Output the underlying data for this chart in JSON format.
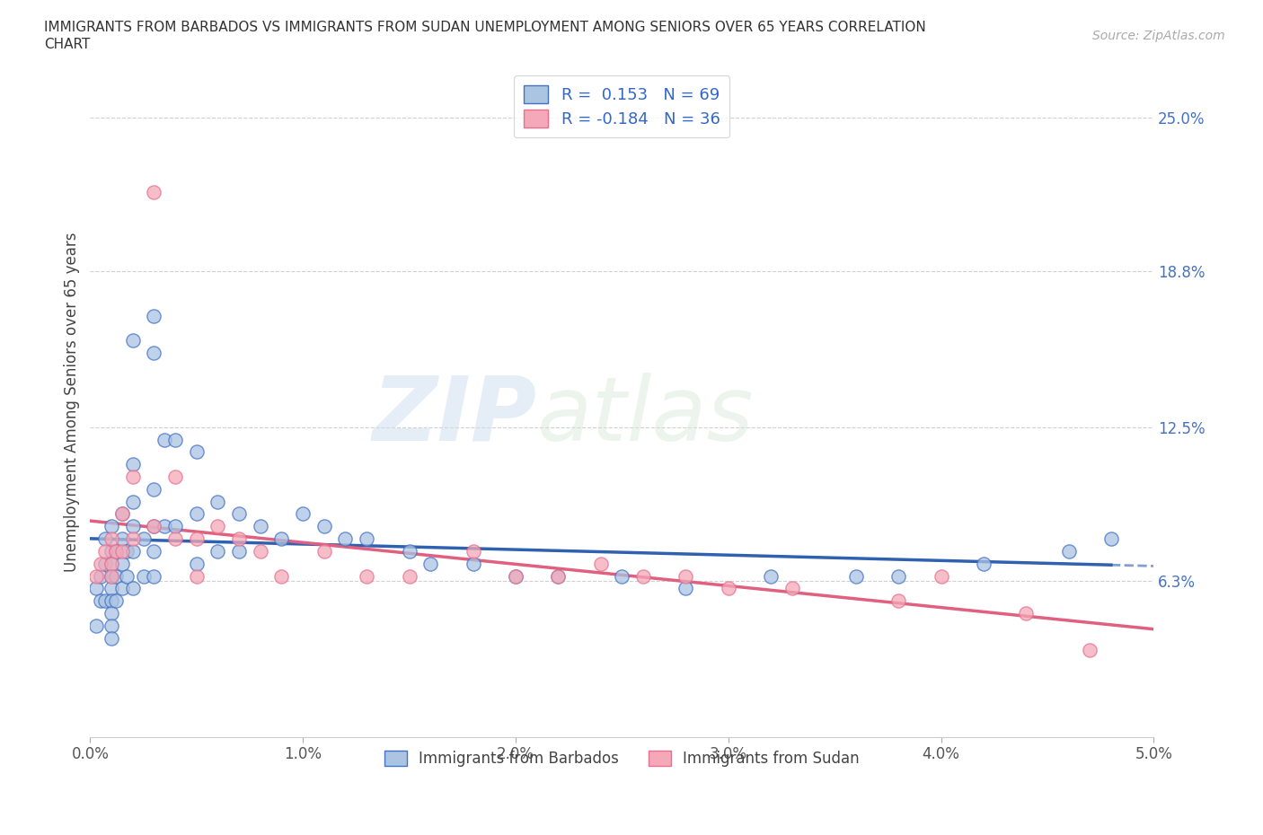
{
  "title_line1": "IMMIGRANTS FROM BARBADOS VS IMMIGRANTS FROM SUDAN UNEMPLOYMENT AMONG SENIORS OVER 65 YEARS CORRELATION",
  "title_line2": "CHART",
  "source": "Source: ZipAtlas.com",
  "ylabel": "Unemployment Among Seniors over 65 years",
  "xlim": [
    0.0,
    0.05
  ],
  "ylim": [
    0.0,
    0.27
  ],
  "xtick_labels": [
    "0.0%",
    "1.0%",
    "2.0%",
    "3.0%",
    "4.0%",
    "5.0%"
  ],
  "xtick_values": [
    0.0,
    0.01,
    0.02,
    0.03,
    0.04,
    0.05
  ],
  "right_ytick_labels": [
    "25.0%",
    "18.8%",
    "12.5%",
    "6.3%"
  ],
  "right_ytick_values": [
    0.25,
    0.188,
    0.125,
    0.063
  ],
  "watermark_zip": "ZIP",
  "watermark_atlas": "atlas",
  "barbados_color": "#aac4e2",
  "sudan_color": "#f4a8b8",
  "barbados_edge_color": "#4472c4",
  "sudan_edge_color": "#e87090",
  "barbados_line_color": "#3060b0",
  "sudan_line_color": "#e06080",
  "R_barbados": 0.153,
  "N_barbados": 69,
  "R_sudan": -0.184,
  "N_sudan": 36,
  "barbados_scatter_x": [
    0.0003,
    0.0003,
    0.0005,
    0.0005,
    0.0007,
    0.0007,
    0.0007,
    0.001,
    0.001,
    0.001,
    0.001,
    0.001,
    0.001,
    0.001,
    0.001,
    0.001,
    0.0012,
    0.0012,
    0.0012,
    0.0015,
    0.0015,
    0.0015,
    0.0015,
    0.0017,
    0.0017,
    0.002,
    0.002,
    0.002,
    0.002,
    0.002,
    0.002,
    0.0025,
    0.0025,
    0.003,
    0.003,
    0.003,
    0.003,
    0.003,
    0.003,
    0.0035,
    0.0035,
    0.004,
    0.004,
    0.005,
    0.005,
    0.005,
    0.006,
    0.006,
    0.007,
    0.007,
    0.008,
    0.009,
    0.01,
    0.011,
    0.012,
    0.013,
    0.015,
    0.016,
    0.018,
    0.02,
    0.022,
    0.025,
    0.028,
    0.032,
    0.036,
    0.038,
    0.042,
    0.046,
    0.048
  ],
  "barbados_scatter_y": [
    0.06,
    0.045,
    0.065,
    0.055,
    0.08,
    0.07,
    0.055,
    0.085,
    0.075,
    0.07,
    0.065,
    0.06,
    0.055,
    0.05,
    0.045,
    0.04,
    0.075,
    0.065,
    0.055,
    0.09,
    0.08,
    0.07,
    0.06,
    0.075,
    0.065,
    0.16,
    0.11,
    0.095,
    0.085,
    0.075,
    0.06,
    0.08,
    0.065,
    0.17,
    0.155,
    0.1,
    0.085,
    0.075,
    0.065,
    0.12,
    0.085,
    0.12,
    0.085,
    0.115,
    0.09,
    0.07,
    0.095,
    0.075,
    0.09,
    0.075,
    0.085,
    0.08,
    0.09,
    0.085,
    0.08,
    0.08,
    0.075,
    0.07,
    0.07,
    0.065,
    0.065,
    0.065,
    0.06,
    0.065,
    0.065,
    0.065,
    0.07,
    0.075,
    0.08
  ],
  "sudan_scatter_x": [
    0.0003,
    0.0005,
    0.0007,
    0.001,
    0.001,
    0.001,
    0.0012,
    0.0015,
    0.0015,
    0.002,
    0.002,
    0.003,
    0.003,
    0.004,
    0.004,
    0.005,
    0.005,
    0.006,
    0.007,
    0.008,
    0.009,
    0.011,
    0.013,
    0.015,
    0.018,
    0.02,
    0.022,
    0.024,
    0.026,
    0.028,
    0.03,
    0.033,
    0.038,
    0.04,
    0.044,
    0.047
  ],
  "sudan_scatter_y": [
    0.065,
    0.07,
    0.075,
    0.08,
    0.07,
    0.065,
    0.075,
    0.09,
    0.075,
    0.105,
    0.08,
    0.22,
    0.085,
    0.105,
    0.08,
    0.08,
    0.065,
    0.085,
    0.08,
    0.075,
    0.065,
    0.075,
    0.065,
    0.065,
    0.075,
    0.065,
    0.065,
    0.07,
    0.065,
    0.065,
    0.06,
    0.06,
    0.055,
    0.065,
    0.05,
    0.035
  ],
  "background_color": "#ffffff",
  "grid_color": "#d0d0d0"
}
